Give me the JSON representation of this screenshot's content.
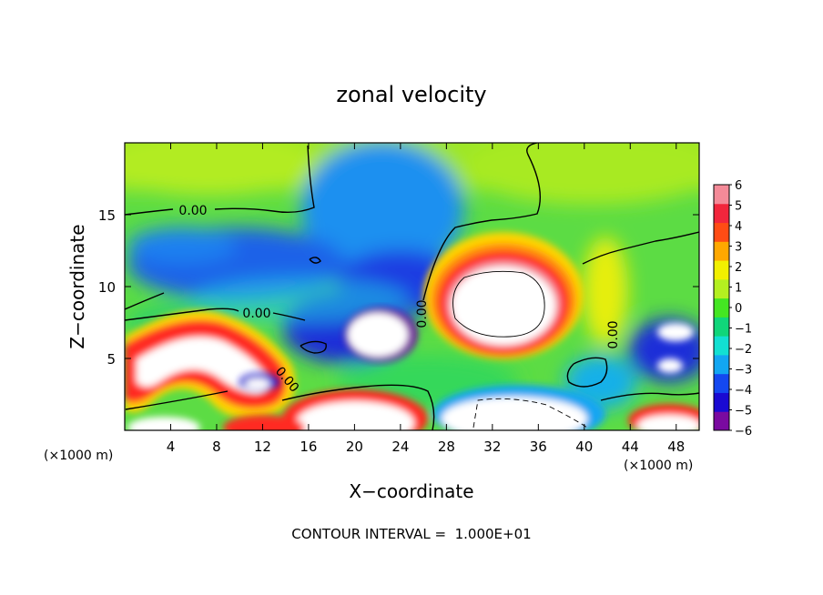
{
  "chart_data": {
    "type": "heatmap",
    "title": "zonal velocity",
    "xlabel": "X−coordinate",
    "ylabel": "Z−coordinate",
    "x_unit_left": "(×1000 m)",
    "x_unit_right": "(×1000 m)",
    "xlim": [
      0,
      50
    ],
    "ylim": [
      0,
      20
    ],
    "x_ticks": [
      4,
      8,
      12,
      16,
      20,
      24,
      28,
      32,
      36,
      40,
      44,
      48
    ],
    "x_tick_labels": [
      "4",
      "8",
      "12",
      "16",
      "20",
      "24",
      "28",
      "32",
      "36",
      "40",
      "44",
      "48"
    ],
    "y_ticks": [
      5,
      10,
      15
    ],
    "y_tick_labels": [
      "5",
      "10",
      "15"
    ],
    "colorbar": {
      "min": -6,
      "max": 6,
      "ticks": [
        6,
        5,
        4,
        3,
        2,
        1,
        0,
        -1,
        -2,
        -3,
        -4,
        -5,
        -6
      ],
      "tick_labels": [
        "6",
        "5",
        "4",
        "3",
        "2",
        "1",
        "0",
        "−1",
        "−2",
        "−3",
        "−4",
        "−5",
        "−6"
      ],
      "colors": [
        "#7a0aa0",
        "#1a0ad2",
        "#1448f0",
        "#12a6f2",
        "#12e0d2",
        "#10d67a",
        "#44e622",
        "#b4f020",
        "#f2f000",
        "#ffa800",
        "#ff4c14",
        "#f2263c",
        "#f48a98"
      ]
    },
    "contour_labels": [
      {
        "text": "0.00",
        "x": 12.5,
        "y": 15.3,
        "rotation": 0
      },
      {
        "text": "0.00",
        "x": 22.5,
        "y": 8.3,
        "rotation": 0
      },
      {
        "text": "0.00",
        "x": 26.3,
        "y": 8.6,
        "rotation": 90
      },
      {
        "text": "0.00",
        "x": 14.0,
        "y": 3.3,
        "rotation": 50
      },
      {
        "text": "0.00",
        "x": 42.2,
        "y": 6.5,
        "rotation": -90
      }
    ],
    "footer": "CONTOUR INTERVAL =  1.000E+01"
  }
}
